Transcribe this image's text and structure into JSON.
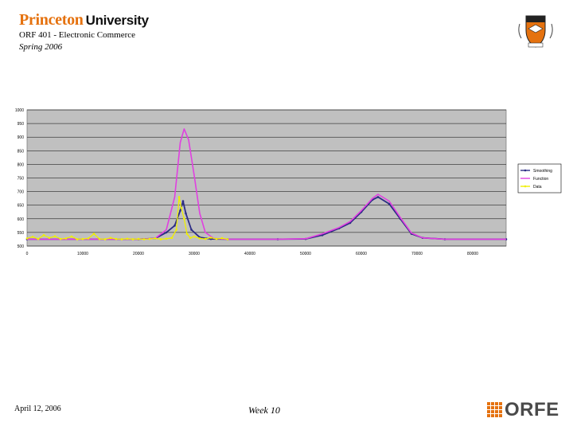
{
  "header": {
    "institution_part1": "Princeton",
    "institution_part2": "University",
    "course": "ORF 401 - Electronic Commerce",
    "term": "Spring 2006"
  },
  "footer": {
    "date": "April 12, 2006",
    "week": "Week 10",
    "logo_text": "ORFE"
  },
  "colors": {
    "brand_orange": "#e5720f",
    "plot_bg": "#c0c0c0",
    "smoothing": "#2b2b84",
    "function": "#e040e0",
    "data": "#f0f000"
  },
  "chart_data": {
    "type": "line",
    "title": "",
    "xlabel": "",
    "ylabel": "",
    "xlim": [
      0,
      86000
    ],
    "ylim": [
      500,
      1000
    ],
    "xticks": [
      "0",
      "10000",
      "20000",
      "30000",
      "40000",
      "50000",
      "60000",
      "70000",
      "80000"
    ],
    "yticks": [
      "500",
      "550",
      "600",
      "650",
      "700",
      "750",
      "800",
      "850",
      "900",
      "950",
      "1000"
    ],
    "grid": true,
    "legend_position": "right",
    "series": [
      {
        "name": "Smoothing",
        "color": "#2b2b84",
        "x": [
          0,
          20000,
          23000,
          25000,
          26500,
          27500,
          28000,
          28500,
          29500,
          31000,
          33000,
          36000,
          45000,
          50000,
          53000,
          56000,
          58000,
          60000,
          62000,
          63000,
          65000,
          67000,
          69000,
          71000,
          75000,
          86000
        ],
        "y": [
          525,
          525,
          528,
          550,
          575,
          630,
          665,
          620,
          560,
          532,
          526,
          525,
          525,
          526,
          540,
          565,
          585,
          625,
          670,
          680,
          655,
          600,
          545,
          530,
          525,
          525
        ]
      },
      {
        "name": "Function",
        "color": "#e040e0",
        "x": [
          0,
          20000,
          23000,
          25000,
          26500,
          27500,
          28200,
          29000,
          30000,
          31000,
          32000,
          33500,
          36000,
          45000,
          50000,
          53000,
          56000,
          58000,
          60000,
          62000,
          63000,
          65000,
          67000,
          69000,
          71000,
          75000,
          86000
        ],
        "y": [
          525,
          525,
          528,
          560,
          680,
          880,
          930,
          890,
          760,
          620,
          550,
          528,
          525,
          525,
          527,
          545,
          568,
          590,
          630,
          675,
          690,
          665,
          605,
          548,
          530,
          525,
          525
        ]
      },
      {
        "name": "Data",
        "color": "#f0f000",
        "x": [
          0,
          1000,
          2000,
          3000,
          4000,
          5000,
          6000,
          7000,
          8000,
          9000,
          10000,
          11000,
          12000,
          13000,
          14000,
          15000,
          16000,
          17000,
          18000,
          19000,
          20000,
          21000,
          22000,
          23000,
          24000,
          25000,
          26000,
          26800,
          27300,
          27700,
          28200,
          28700,
          29300,
          30000,
          31000,
          32000,
          33000,
          34000,
          35000,
          36000
        ],
        "y": [
          528,
          534,
          526,
          540,
          530,
          536,
          526,
          528,
          535,
          525,
          526,
          528,
          545,
          526,
          525,
          530,
          526,
          525,
          527,
          525,
          526,
          525,
          526,
          528,
          525,
          527,
          530,
          560,
          680,
          640,
          600,
          545,
          530,
          535,
          528,
          526,
          531,
          526,
          529,
          525
        ]
      }
    ]
  }
}
